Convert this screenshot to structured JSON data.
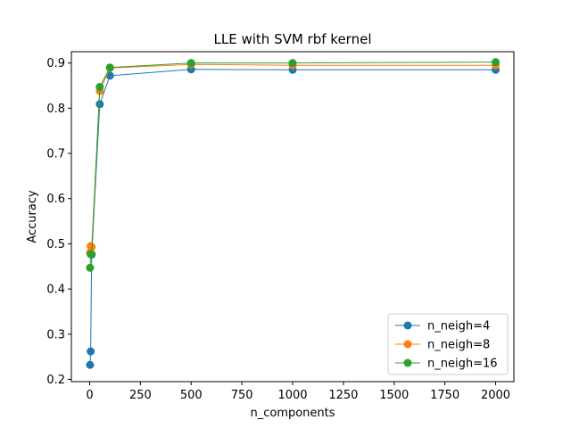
{
  "chart_data": {
    "type": "line",
    "title": "LLE with SVM rbf kernel",
    "xlabel": "n_components",
    "ylabel": "Accuracy",
    "xlim": [
      -90,
      2090
    ],
    "ylim": [
      0.195,
      0.925
    ],
    "xticks": [
      0,
      250,
      500,
      750,
      1000,
      1250,
      1500,
      1750,
      2000
    ],
    "yticks": [
      0.2,
      0.3,
      0.4,
      0.5,
      0.6,
      0.7,
      0.8,
      0.9
    ],
    "grid": false,
    "legend_position": "lower-right",
    "x": [
      2,
      5,
      10,
      50,
      100,
      500,
      1000,
      2000
    ],
    "series": [
      {
        "name": "n_neigh=4",
        "color": "#1f77b4",
        "values": [
          0.232,
          0.262,
          0.476,
          0.809,
          0.872,
          0.886,
          0.885,
          0.885
        ]
      },
      {
        "name": "n_neigh=8",
        "color": "#ff7f0e",
        "values": [
          0.48,
          0.495,
          0.493,
          0.838,
          0.889,
          0.897,
          0.895,
          0.895
        ]
      },
      {
        "name": "n_neigh=16",
        "color": "#2ca02c",
        "values": [
          0.447,
          0.477,
          0.477,
          0.847,
          0.89,
          0.9,
          0.9,
          0.902
        ]
      }
    ]
  }
}
